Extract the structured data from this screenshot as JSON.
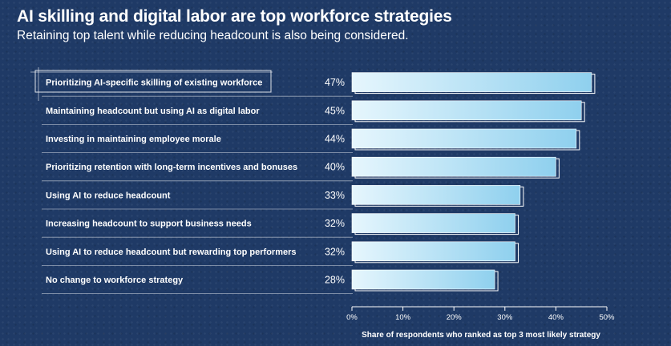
{
  "header": {
    "title": "AI skilling and digital labor are top workforce strategies",
    "subtitle": "Retaining top talent while reducing headcount is also being considered."
  },
  "chart_data": {
    "type": "bar",
    "orientation": "horizontal",
    "categories": [
      "Prioritizing AI-specific skilling of existing workforce",
      "Maintaining headcount but using AI as digital labor",
      "Investing in maintaining employee morale",
      "Prioritizing retention with long-term incentives and bonuses",
      "Using AI to reduce headcount",
      "Increasing headcount to support business needs",
      "Using AI to reduce headcount but rewarding top performers",
      "No change to workforce strategy"
    ],
    "values": [
      47,
      45,
      44,
      40,
      33,
      32,
      32,
      28
    ],
    "value_labels": [
      "47%",
      "45%",
      "44%",
      "40%",
      "33%",
      "32%",
      "32%",
      "28%"
    ],
    "xlim": [
      0,
      50
    ],
    "xticks": [
      "0%",
      "10%",
      "20%",
      "30%",
      "40%",
      "50%"
    ],
    "xlabel": "Share of respondents who ranked as top 3 most likely strategy",
    "colors": {
      "bar_start": "#e6f6fd",
      "bar_end": "#8fd0ee",
      "outline": "#ffffff",
      "background": "#1f3a66"
    }
  }
}
